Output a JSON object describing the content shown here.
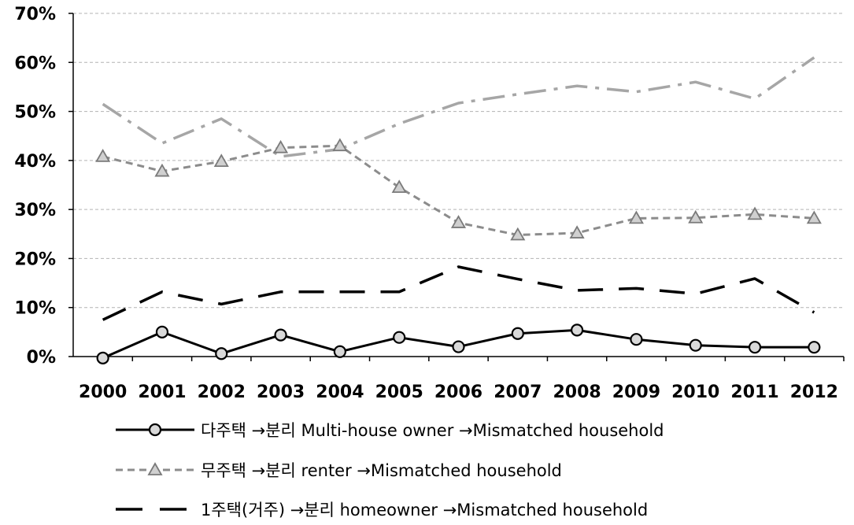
{
  "chart_data": {
    "type": "line",
    "title": "",
    "xlabel": "",
    "ylabel": "",
    "categories": [
      "2000",
      "2001",
      "2002",
      "2003",
      "2004",
      "2005",
      "2006",
      "2007",
      "2008",
      "2009",
      "2010",
      "2011",
      "2012"
    ],
    "ylim": [
      0,
      70
    ],
    "yticks": [
      "0%",
      "10%",
      "20%",
      "30%",
      "40%",
      "50%",
      "60%",
      "70%"
    ],
    "grid": true,
    "legend_position": "bottom",
    "series": [
      {
        "name": "multi",
        "label": "다주택 →분리 Multi-house owner →Mismatched household",
        "style": "solid-circle",
        "color": "#000000",
        "values": [
          -0.3,
          5.0,
          0.6,
          4.4,
          1.0,
          3.9,
          2.0,
          4.7,
          5.4,
          3.5,
          2.3,
          1.9,
          1.9
        ]
      },
      {
        "name": "renter",
        "label": "무주택 →분리 renter →Mismatched household",
        "style": "dash-triangle",
        "color": "#8c8c8c",
        "values": [
          40.8,
          37.8,
          39.8,
          42.6,
          43.0,
          34.5,
          27.3,
          24.8,
          25.2,
          28.2,
          28.3,
          29.0,
          28.2
        ]
      },
      {
        "name": "homeowner",
        "label": "1주택(거주) →분리 homeowner →Mismatched household",
        "style": "longdash",
        "color": "#000000",
        "values": [
          7.5,
          13.2,
          10.7,
          13.2,
          13.2,
          13.2,
          18.3,
          15.8,
          13.5,
          13.9,
          12.8,
          15.9,
          9.0
        ]
      },
      {
        "name": "dashdot",
        "label": "",
        "style": "dashdot",
        "color": "#a6a6a6",
        "values": [
          51.5,
          43.5,
          48.5,
          40.8,
          42.3,
          47.5,
          51.7,
          53.5,
          55.2,
          54.0,
          56.0,
          52.6,
          61.0
        ]
      }
    ]
  }
}
